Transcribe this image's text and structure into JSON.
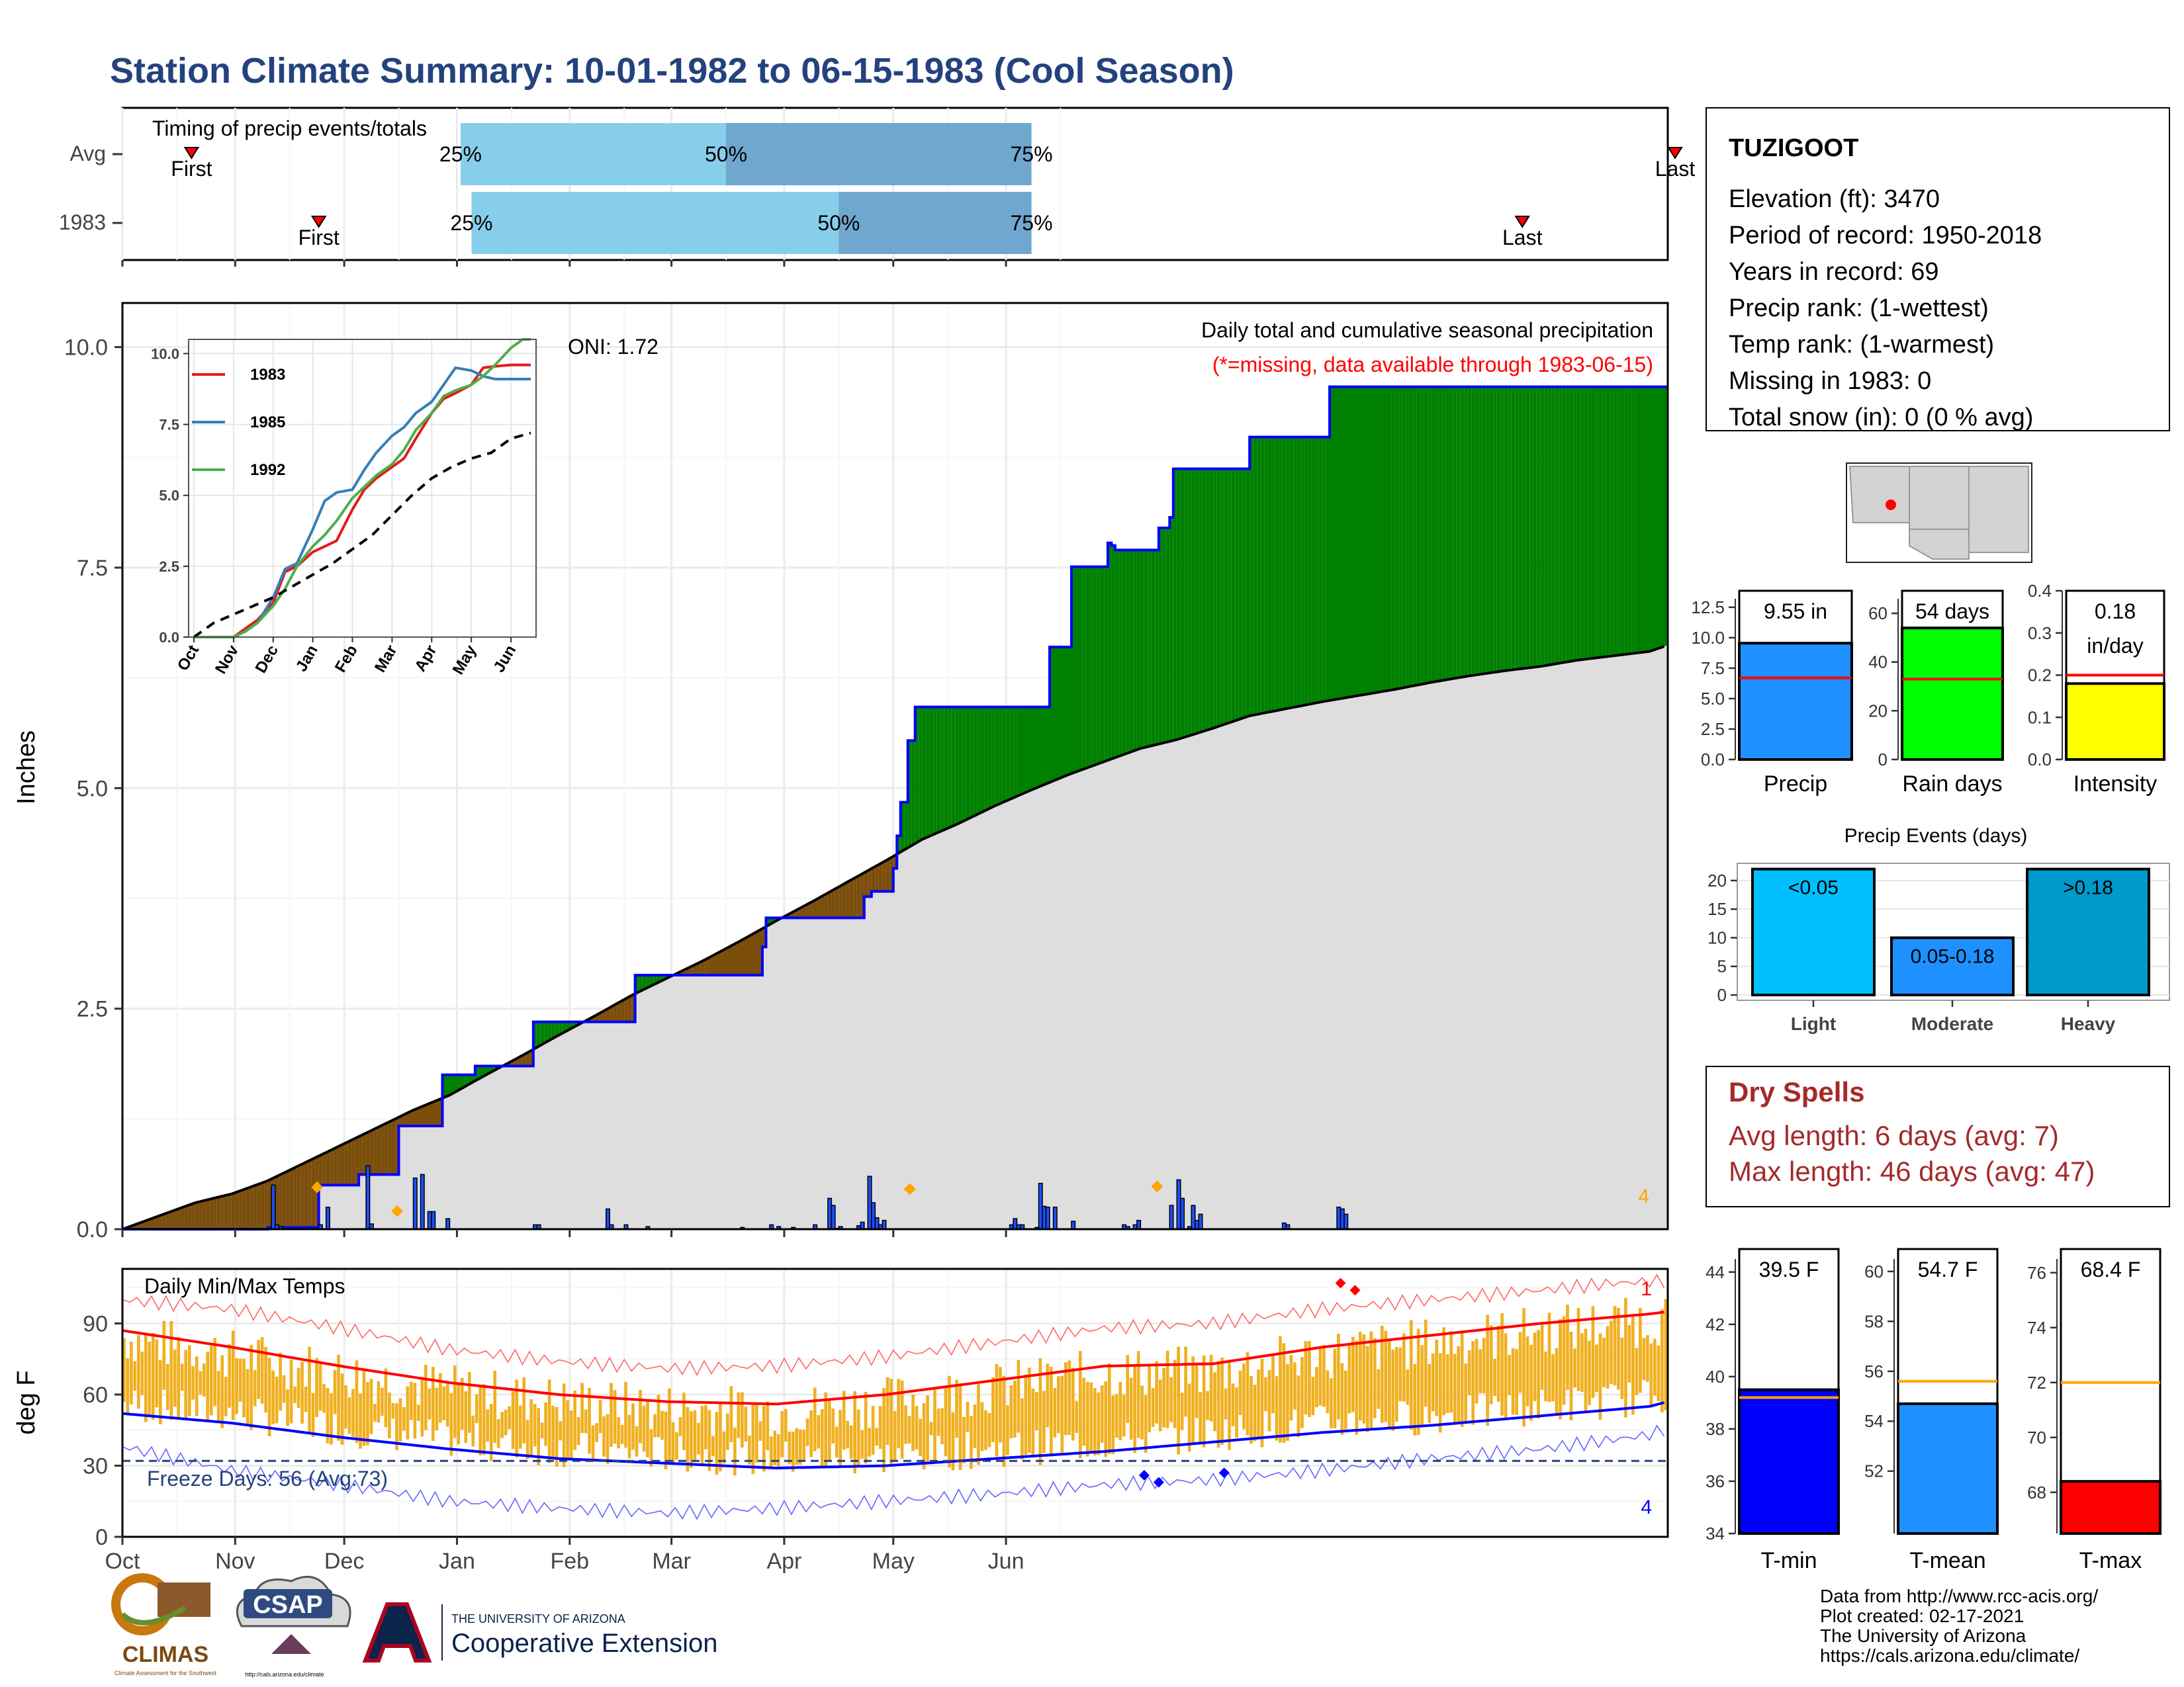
{
  "title": "Station Climate Summary: 10-01-1982 to 06-15-1983 (Cool Season)",
  "colors": {
    "title": "#24427e",
    "q_light": "#87ceeb",
    "q_dark": "#6fa7cf",
    "cum_green": "#008000",
    "deficit_brown": "#7b4e0c",
    "avg_gray": "#dedede",
    "station_line": "#0000ff",
    "daily_bar": "#1c4fff",
    "marker_orange": "#ffa500",
    "temp_bar": "#f0b020",
    "max_line": "#ff0000",
    "min_line": "#0000ff",
    "dry_red": "#a52a2a",
    "precip_bar": "#1e90ff",
    "raindays_bar": "#00ff00",
    "intensity_bar": "#ffff00",
    "light_bar": "#00bfff",
    "moderate_bar": "#1e90ff",
    "heavy_bar": "#0099cc",
    "tmin_bar": "#0000ff",
    "tmean_bar": "#1e90ff",
    "tmax_bar": "#ff0000",
    "avg_ref": "#ffa500"
  },
  "timing": {
    "title": "Timing of precip events/totals",
    "rows": [
      {
        "label": "Avg",
        "q25": "25%",
        "q50": "50%",
        "q75": "75%",
        "first": "First",
        "last": "Last",
        "q25_day": 93,
        "q50_day": 166,
        "q75_day": 250,
        "first_day": 19,
        "last_day": 427
      },
      {
        "label": "1983",
        "q25": "25%",
        "q50": "50%",
        "q75": "75%",
        "first": "First",
        "last": "Last",
        "q25_day": 96,
        "q50_day": 197,
        "q75_day": 250,
        "first_day": 54,
        "last_day": 385
      }
    ]
  },
  "precip_panel": {
    "caption": "Daily total and cumulative seasonal precipitation",
    "missing_note": "(*=missing, data available through 1983-06-15)",
    "oni": "ONI: 1.72",
    "ylabel": "Inches",
    "yticks": [
      "0.0",
      "2.5",
      "5.0",
      "7.5",
      "10.0"
    ],
    "corner_count": "4",
    "xticks": [
      "Oct",
      "Nov",
      "Dec",
      "Jan",
      "Feb",
      "Mar",
      "Apr",
      "May",
      "Jun"
    ]
  },
  "inset": {
    "yticks": [
      "0.0",
      "2.5",
      "5.0",
      "7.5",
      "10.0"
    ],
    "xticks": [
      "Oct",
      "Nov",
      "Dec",
      "Jan",
      "Feb",
      "Mar",
      "Apr",
      "May",
      "Jun"
    ],
    "legend": [
      "1983",
      "1985",
      "1992"
    ]
  },
  "temp_panel": {
    "title": "Daily Min/Max Temps",
    "ylabel": "deg F",
    "yticks": [
      "0",
      "30",
      "60",
      "90"
    ],
    "freeze": "Freeze Days: 56 (Avg:73)",
    "max_count": "1",
    "min_count": "4"
  },
  "station": {
    "name": "TUZIGOOT",
    "lines": [
      "Elevation (ft): 3470",
      "Period of record: 1950-2018",
      "Years in record: 69",
      "Precip rank:  (1-wettest)",
      "Temp rank:  (1-warmest)",
      "Missing in 1983: 0",
      "Total snow (in): 0 (0 % avg)"
    ]
  },
  "summary_bars": {
    "precip": {
      "label": "Precip",
      "value_text": "9.55 in",
      "value": 9.55,
      "avg": 6.7,
      "ymax": 13.2,
      "ticks": [
        "0.0",
        "2.5",
        "5.0",
        "7.5",
        "10.0",
        "12.5"
      ]
    },
    "raindays": {
      "label": "Rain days",
      "value_text": "54 days",
      "value": 54,
      "avg": 33,
      "ymax": 66,
      "ticks": [
        "0",
        "20",
        "40",
        "60"
      ]
    },
    "intensity": {
      "label": "Intensity",
      "value_text": "0.18",
      "value_text2": "in/day",
      "value": 0.18,
      "avg": 0.2,
      "ymax": 0.4,
      "ticks": [
        "0.0",
        "0.1",
        "0.2",
        "0.3",
        "0.4"
      ]
    }
  },
  "events": {
    "title": "Precip Events (days)",
    "categories": [
      "Light",
      "Moderate",
      "Heavy"
    ],
    "labels": [
      "<0.05",
      "0.05-0.18",
      ">0.18"
    ],
    "values": [
      22,
      10,
      22
    ],
    "ticks": [
      "0",
      "5",
      "10",
      "15",
      "20"
    ]
  },
  "dry_spells": {
    "title": "Dry Spells",
    "avg_length": "Avg length: 6 days (avg: 7)",
    "max_length": "Max length: 46 days (avg: 47)"
  },
  "temp_bars": {
    "tmin": {
      "label": "T-min",
      "value_text": "39.5 F",
      "value": 39.5,
      "avg": 39.2,
      "ymin": 34,
      "ymax": 44.5,
      "ticks": [
        "34",
        "36",
        "38",
        "40",
        "42",
        "44"
      ]
    },
    "tmean": {
      "label": "T-mean",
      "value_text": "54.7 F",
      "value": 54.7,
      "avg": 55.6,
      "ymin": 49.5,
      "ymax": 60.5,
      "ticks": [
        "52",
        "54",
        "56",
        "58",
        "60"
      ]
    },
    "tmax": {
      "label": "T-max",
      "value_text": "68.4 F",
      "value": 68.4,
      "avg": 72.0,
      "ymin": 66.5,
      "ymax": 76.5,
      "ticks": [
        "68",
        "70",
        "72",
        "74",
        "76"
      ]
    }
  },
  "footer": {
    "lines": [
      "Data from http://www.rcc-acis.org/",
      "Plot created: 02-17-2021",
      "The University of Arizona",
      "https://cals.arizona.edu/climate/"
    ],
    "climas": "CLIMAS",
    "climas_sub": "Climate Assessment for the Southwest",
    "csap": "CSAP",
    "csap_url": "http://cals.arizona.edu/climate",
    "ua_small": "THE UNIVERSITY OF ARIZONA",
    "ua_big": "Cooperative Extension"
  },
  "chart_data": [
    {
      "type": "area",
      "title": "Daily total and cumulative seasonal precipitation",
      "ylabel": "Inches",
      "ylim": [
        0,
        10.5
      ],
      "x_unit": "days since Oct 1",
      "series": [
        {
          "name": "1983",
          "x": [
            0,
            39,
            40,
            53,
            54,
            64,
            65,
            75,
            76,
            87,
            88,
            96,
            97,
            112,
            113,
            140,
            141,
            175,
            176,
            177,
            203,
            204,
            206,
            211,
            212,
            213,
            214,
            216,
            218,
            254,
            255,
            257,
            261,
            262,
            271,
            272,
            273,
            284,
            285,
            288,
            289,
            309,
            310,
            331,
            332,
            349,
            350,
            368,
            369,
            423,
            425
          ],
          "y": [
            0,
            0,
            0.02,
            0.02,
            0.5,
            0.5,
            0.62,
            0.62,
            1.17,
            1.17,
            1.75,
            1.75,
            1.85,
            1.85,
            2.35,
            2.35,
            2.88,
            2.88,
            3.2,
            3.53,
            3.53,
            3.77,
            3.83,
            3.83,
            4.09,
            4.46,
            4.84,
            5.54,
            5.92,
            5.92,
            6.6,
            6.6,
            7.51,
            7.51,
            7.78,
            7.75,
            7.7,
            7.7,
            7.95,
            8.07,
            8.62,
            8.62,
            8.98,
            8.98,
            9.55,
            9.55,
            9.55,
            9.55,
            9.55,
            9.55,
            9.55
          ]
        },
        {
          "name": "Avg",
          "x": [
            0,
            10,
            20,
            30,
            40,
            50,
            60,
            70,
            80,
            90,
            100,
            110,
            120,
            130,
            140,
            150,
            160,
            170,
            180,
            190,
            200,
            210,
            220,
            230,
            240,
            250,
            260,
            270,
            280,
            290,
            300,
            310,
            320,
            330,
            340,
            350,
            360,
            370,
            380,
            390,
            400,
            410,
            420,
            425
          ],
          "y": [
            0,
            0.15,
            0.3,
            0.4,
            0.55,
            0.75,
            0.95,
            1.15,
            1.35,
            1.52,
            1.75,
            1.97,
            2.2,
            2.42,
            2.65,
            2.85,
            3.05,
            3.27,
            3.5,
            3.72,
            3.95,
            4.18,
            4.42,
            4.6,
            4.8,
            4.98,
            5.15,
            5.3,
            5.45,
            5.55,
            5.68,
            5.82,
            5.9,
            5.98,
            6.05,
            6.12,
            6.2,
            6.27,
            6.33,
            6.38,
            6.45,
            6.5,
            6.55,
            6.62
          ]
        }
      ],
      "daily_x": [
        41,
        42,
        43,
        54,
        56,
        67,
        68,
        80,
        82,
        84,
        85,
        89,
        113,
        114,
        133,
        134,
        138,
        144,
        170,
        178,
        180,
        184,
        190,
        194,
        195,
        196,
        197,
        202,
        203,
        205,
        206,
        207,
        208,
        209,
        244,
        245,
        246,
        247,
        251,
        252,
        253,
        254,
        256,
        261,
        275,
        276,
        278,
        279,
        288,
        290,
        291,
        294,
        296,
        295,
        293,
        319,
        320,
        334,
        335,
        336
      ],
      "daily_y": [
        0.5,
        0.05,
        0.03,
        0.05,
        0.25,
        0.72,
        0.06,
        0.58,
        0.62,
        0.2,
        0.2,
        0.12,
        0.05,
        0.05,
        0.23,
        0.05,
        0.05,
        0.03,
        0.02,
        0.05,
        0.03,
        0.02,
        0.05,
        0.35,
        0.27,
        0.01,
        0.03,
        0.04,
        0.08,
        0.6,
        0.3,
        0.13,
        0.05,
        0.1,
        0.05,
        0.12,
        0.05,
        0.05,
        0.02,
        0.52,
        0.26,
        0.25,
        0.25,
        0.09,
        0.05,
        0.03,
        0.05,
        0.1,
        0.27,
        0.56,
        0.35,
        0.27,
        0.17,
        0.1,
        0.03,
        0.07,
        0.05,
        0.25,
        0.23,
        0.17
      ]
    },
    {
      "type": "line",
      "title": "",
      "ylim": [
        0,
        10.5
      ],
      "series": [
        {
          "name": "1983",
          "x": [
            0,
            1,
            1.3,
            1.6,
            2,
            2.3,
            2.6,
            3,
            3.3,
            3.6,
            4,
            4.3,
            4.6,
            5,
            5.3,
            5.6,
            6,
            6.3,
            6.6,
            7,
            7.3,
            7.6,
            8,
            8.3,
            8.5
          ],
          "y": [
            0,
            0,
            0.3,
            0.6,
            1.2,
            2.3,
            2.5,
            3.0,
            3.2,
            3.4,
            4.5,
            5.2,
            5.6,
            6.0,
            6.3,
            7.0,
            7.9,
            8.4,
            8.6,
            8.9,
            9.5,
            9.55,
            9.6,
            9.6,
            9.6
          ]
        },
        {
          "name": "1985",
          "x": [
            0,
            1,
            1.3,
            1.6,
            2,
            2.3,
            2.6,
            3,
            3.3,
            3.6,
            4,
            4.3,
            4.6,
            5,
            5.3,
            5.6,
            6,
            6.3,
            6.6,
            7,
            7.3,
            7.6,
            8,
            8.3,
            8.5
          ],
          "y": [
            0,
            0,
            0.2,
            0.5,
            1.4,
            2.4,
            2.6,
            3.8,
            4.8,
            5.1,
            5.2,
            5.9,
            6.5,
            7.1,
            7.4,
            7.9,
            8.3,
            8.9,
            9.5,
            9.4,
            9.2,
            9.1,
            9.1,
            9.1,
            9.1
          ]
        },
        {
          "name": "1992",
          "x": [
            0,
            1,
            1.3,
            1.6,
            2,
            2.3,
            2.6,
            3,
            3.3,
            3.6,
            4,
            4.3,
            4.6,
            5,
            5.3,
            5.6,
            6,
            6.3,
            6.6,
            7,
            7.3,
            7.6,
            8,
            8.3,
            8.5
          ],
          "y": [
            0,
            0,
            0.2,
            0.5,
            1.1,
            1.7,
            2.5,
            3.2,
            3.6,
            4.1,
            4.9,
            5.3,
            5.7,
            6.1,
            6.6,
            7.3,
            7.9,
            8.5,
            8.7,
            8.9,
            9.2,
            9.6,
            10.2,
            10.5,
            10.5
          ]
        },
        {
          "name": "Avg",
          "x": [
            0,
            0.5,
            1,
            1.5,
            2,
            2.5,
            3,
            3.5,
            4,
            4.5,
            5,
            5.5,
            6,
            6.5,
            7,
            7.5,
            8,
            8.5
          ],
          "y": [
            0,
            0.5,
            0.8,
            1.1,
            1.4,
            1.8,
            2.2,
            2.6,
            3.1,
            3.6,
            4.3,
            5.0,
            5.6,
            6.0,
            6.3,
            6.5,
            7.0,
            7.2
          ]
        }
      ]
    },
    {
      "type": "bar",
      "title": "Daily Min/Max Temps",
      "ylabel": "deg F",
      "ylim": [
        0,
        110
      ],
      "x_unit": "days since Oct 1",
      "series": [
        {
          "name": "Avg max",
          "x": [
            0,
            30,
            60,
            90,
            120,
            150,
            180,
            210,
            240,
            270,
            300,
            330,
            360,
            390,
            420,
            425
          ],
          "y": [
            87,
            80,
            72,
            65,
            60,
            57,
            56,
            60,
            66,
            72,
            73,
            80,
            85,
            90,
            94,
            95
          ]
        },
        {
          "name": "Avg min",
          "x": [
            0,
            30,
            60,
            90,
            120,
            150,
            180,
            210,
            240,
            270,
            300,
            330,
            360,
            390,
            420,
            425
          ],
          "y": [
            52,
            48,
            42,
            37,
            33,
            31,
            29,
            30,
            33,
            36,
            40,
            44,
            47,
            51,
            55,
            57
          ]
        },
        {
          "name": "Record max",
          "x": [
            0,
            30,
            60,
            90,
            120,
            150,
            180,
            210,
            240,
            270,
            300,
            330,
            360,
            390,
            410,
            425
          ],
          "y": [
            100,
            96,
            88,
            79,
            74,
            71,
            72,
            76,
            82,
            88,
            90,
            96,
            100,
            104,
            107,
            108
          ]
        },
        {
          "name": "Record min",
          "x": [
            0,
            30,
            60,
            90,
            120,
            150,
            180,
            210,
            240,
            270,
            300,
            330,
            360,
            390,
            420,
            425
          ],
          "y": [
            38,
            28,
            22,
            15,
            12,
            10,
            12,
            15,
            18,
            22,
            24,
            28,
            33,
            37,
            43,
            46
          ]
        }
      ],
      "freeze_line": 32
    },
    {
      "type": "bar",
      "categories": [
        "Precip"
      ],
      "values": [
        9.55
      ],
      "avg": 6.7
    },
    {
      "type": "bar",
      "categories": [
        "Rain days"
      ],
      "values": [
        54
      ],
      "avg": 33
    },
    {
      "type": "bar",
      "categories": [
        "Intensity"
      ],
      "values": [
        0.18
      ],
      "avg": 0.2
    },
    {
      "type": "bar",
      "title": "Precip Events (days)",
      "categories": [
        "Light",
        "Moderate",
        "Heavy"
      ],
      "values": [
        22,
        10,
        22
      ]
    },
    {
      "type": "bar",
      "categories": [
        "T-min"
      ],
      "values": [
        39.5
      ],
      "avg": 39.2
    },
    {
      "type": "bar",
      "categories": [
        "T-mean"
      ],
      "values": [
        54.7
      ],
      "avg": 55.6
    },
    {
      "type": "bar",
      "categories": [
        "T-max"
      ],
      "values": [
        68.4
      ],
      "avg": 72.0
    }
  ]
}
